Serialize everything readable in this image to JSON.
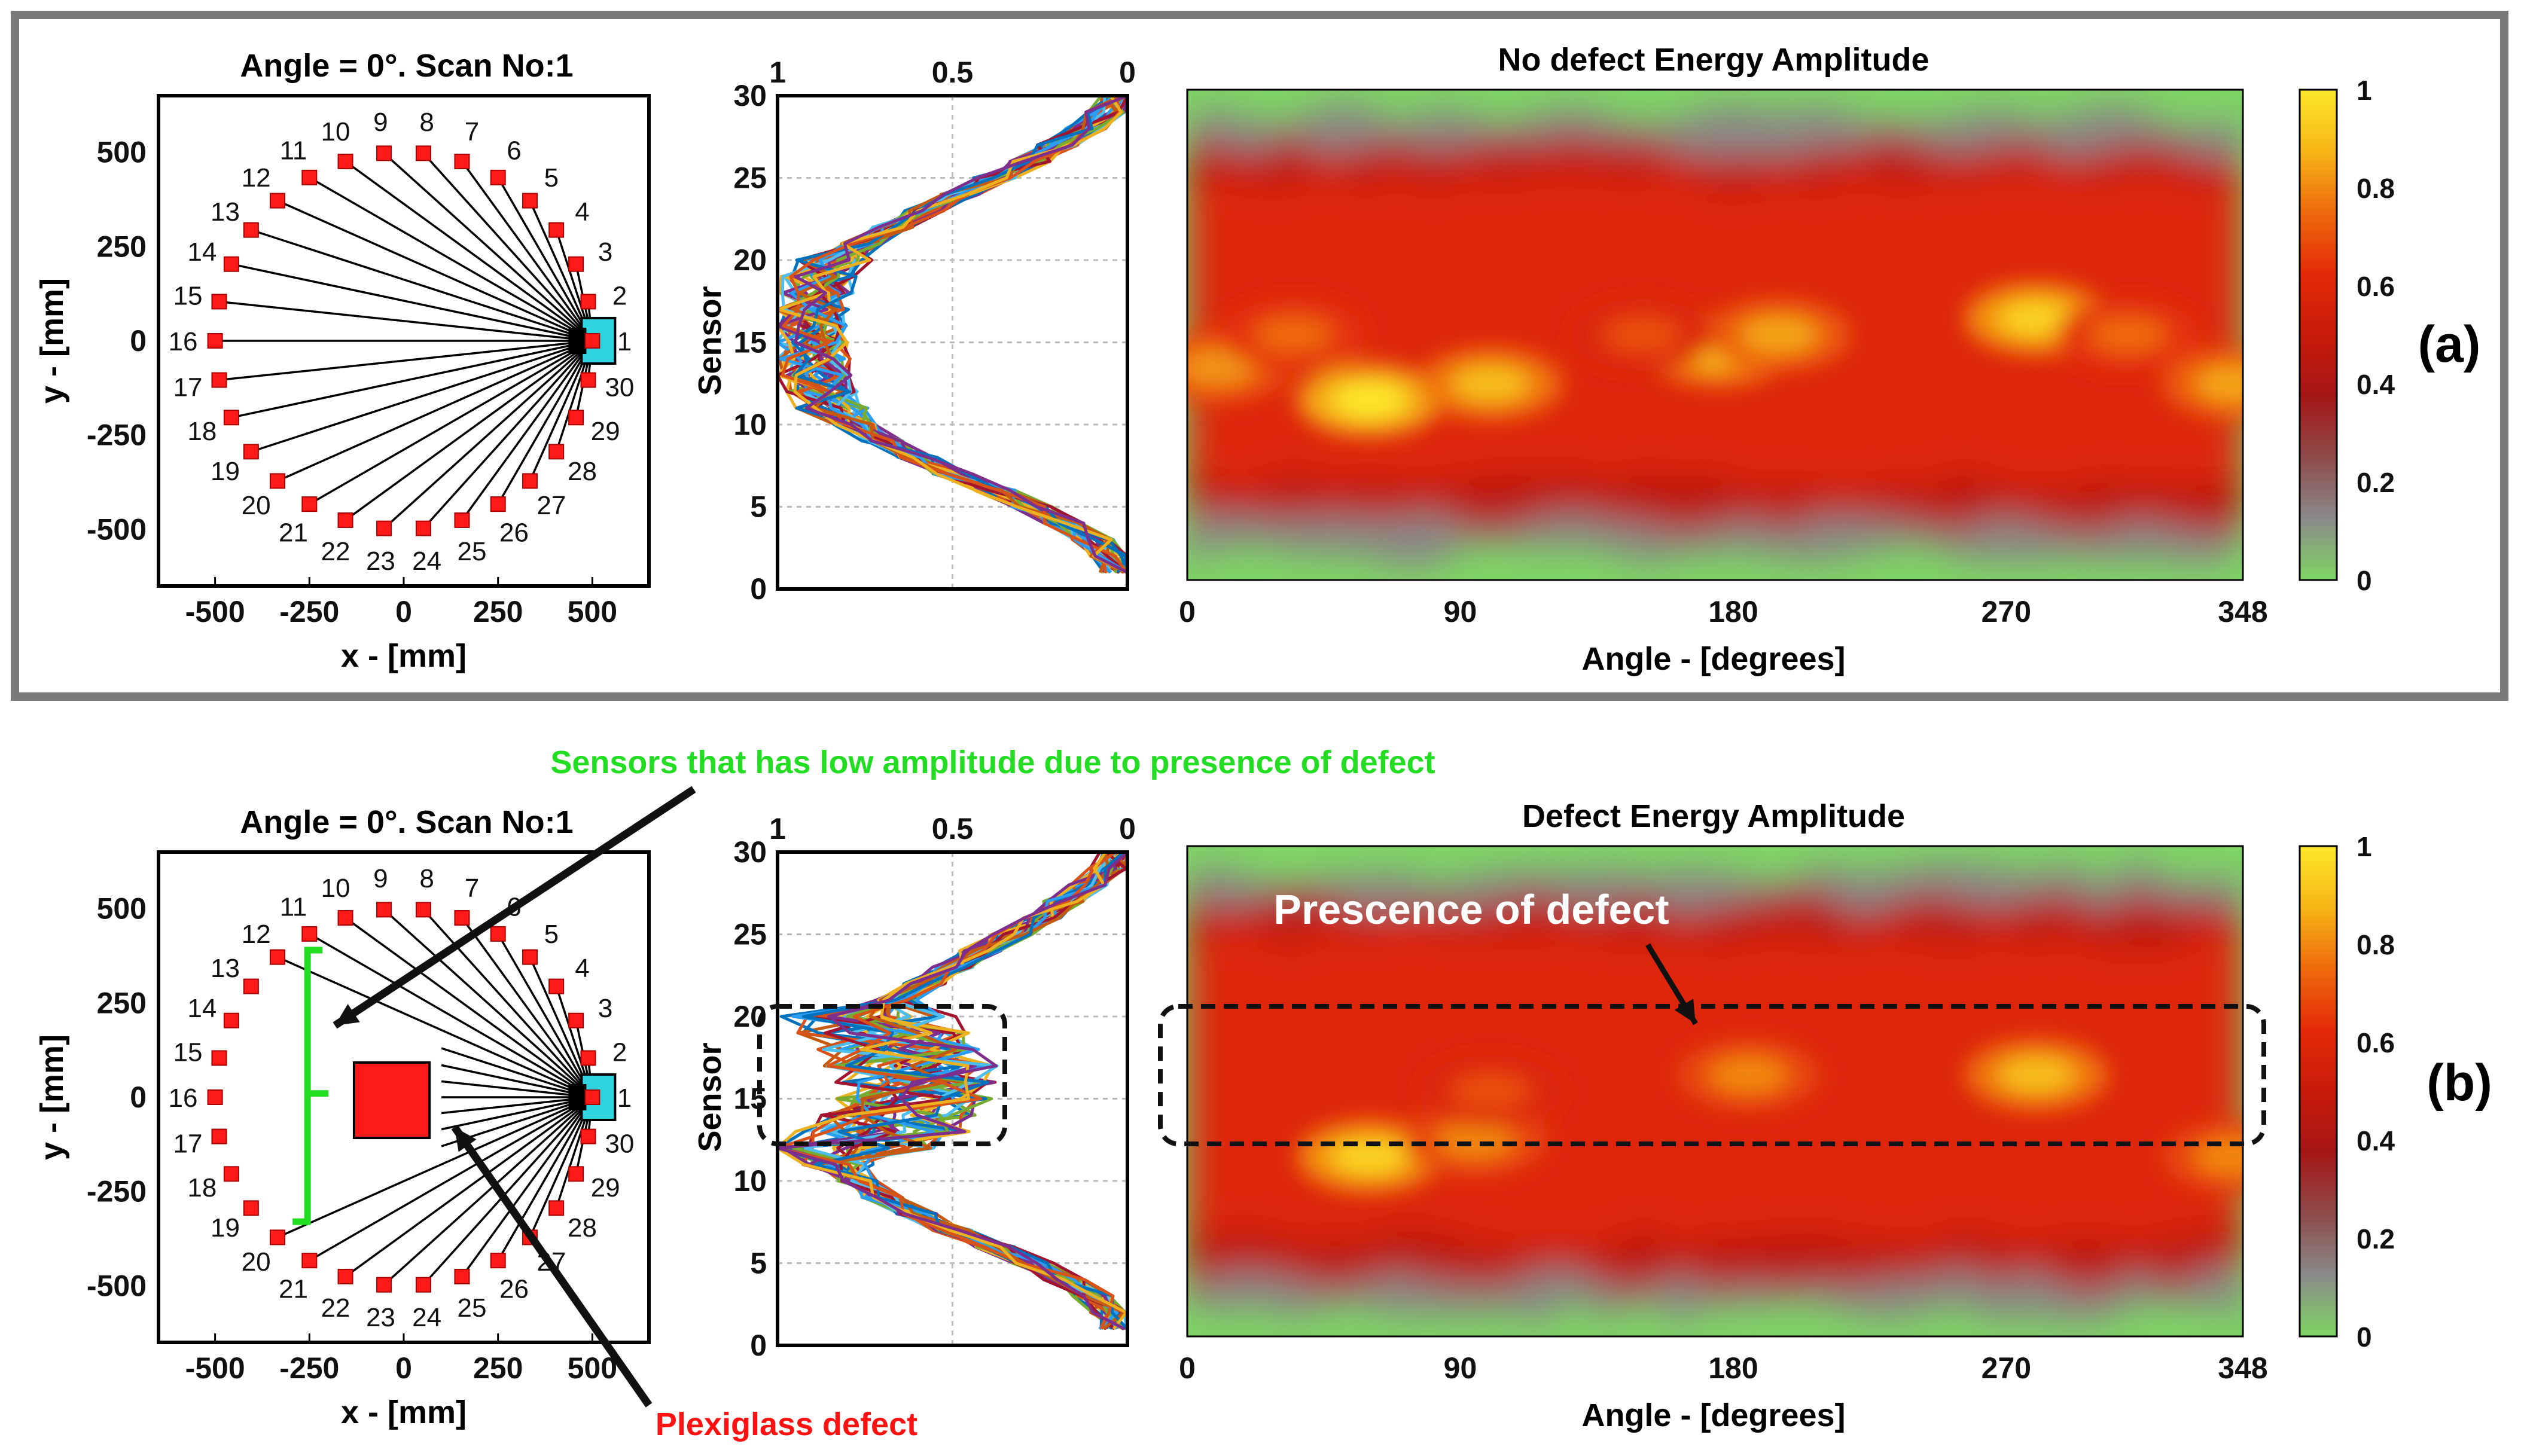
{
  "colors": {
    "panel_border": "#7a7a7a",
    "node": "#ff1a1a",
    "source": "#2fd4e0",
    "green_note": "#22dd22",
    "red_note": "#ff1111",
    "cmap": [
      "#7ed663",
      "#8a8a8a",
      "#8f4a4a",
      "#a51616",
      "#c81a0a",
      "#e42a08",
      "#ee6a0c",
      "#f6b516",
      "#fde82a"
    ]
  },
  "chart_data": [
    {
      "type": "scatter",
      "panel": "a",
      "title": "Angle = 0°. Scan No:1",
      "xlabel": "x - [mm]",
      "ylabel": "y - [mm]",
      "xlim": [
        -650,
        650
      ],
      "ylim": [
        -650,
        650
      ],
      "xticks": [
        "-500",
        "-250",
        "0",
        "250",
        "500"
      ],
      "yticks": [
        "500",
        "250",
        "0",
        "-250",
        "-500"
      ],
      "radius_mm": 500,
      "sensor_count": 30,
      "sensor_labels": [
        "1",
        "2",
        "3",
        "4",
        "5",
        "6",
        "7",
        "8",
        "9",
        "10",
        "11",
        "12",
        "13",
        "14",
        "15",
        "16",
        "17",
        "18",
        "19",
        "20",
        "21",
        "22",
        "23",
        "24",
        "25",
        "26",
        "27",
        "28",
        "29",
        "30"
      ],
      "source_position_mm": [
        500,
        0
      ],
      "defect": null
    },
    {
      "type": "line",
      "panel": "a",
      "xlabel": "",
      "ylabel": "Sensor",
      "xlim": [
        1,
        0
      ],
      "ylim": [
        0,
        30
      ],
      "xticks": [
        "1",
        "0.5",
        "0"
      ],
      "yticks": [
        "30",
        "25",
        "20",
        "15",
        "10",
        "5",
        "0"
      ],
      "grid": true,
      "sensors": [
        1,
        2,
        3,
        4,
        5,
        6,
        7,
        8,
        9,
        10,
        11,
        12,
        13,
        14,
        15,
        16,
        17,
        18,
        19,
        20,
        21,
        22,
        23,
        24,
        25,
        26,
        27,
        28,
        29,
        30
      ],
      "profile_mean": [
        0.02,
        0.05,
        0.1,
        0.18,
        0.27,
        0.38,
        0.5,
        0.6,
        0.7,
        0.78,
        0.84,
        0.87,
        0.9,
        0.9,
        0.91,
        0.91,
        0.9,
        0.89,
        0.88,
        0.84,
        0.76,
        0.67,
        0.58,
        0.48,
        0.38,
        0.28,
        0.2,
        0.12,
        0.06,
        0.02
      ],
      "spread_defect_window": null
    },
    {
      "type": "heatmap",
      "panel": "a",
      "title": "No defect Energy Amplitude",
      "xlabel": "Angle - [degrees]",
      "ylabel": "",
      "xlim": [
        0,
        348
      ],
      "ylim": [
        30,
        0
      ],
      "xticks": [
        "0",
        "90",
        "180",
        "270",
        "348"
      ],
      "colorbar": {
        "range": [
          0,
          1
        ],
        "ticks": [
          "1",
          "0.8",
          "0.6",
          "0.4",
          "0.2",
          "0"
        ]
      },
      "hotspots_deg_sensor_value": [
        [
          60,
          19,
          1.0
        ],
        [
          100,
          18,
          0.9
        ],
        [
          175,
          16,
          0.9
        ],
        [
          195,
          15,
          0.85
        ],
        [
          280,
          14,
          0.95
        ],
        [
          345,
          18,
          0.85
        ],
        [
          10,
          17,
          0.82
        ],
        [
          35,
          15,
          0.75
        ],
        [
          150,
          15,
          0.7
        ],
        [
          310,
          15,
          0.75
        ]
      ]
    },
    {
      "type": "scatter",
      "panel": "b",
      "title": "Angle = 0°. Scan No:1",
      "xlabel": "x - [mm]",
      "ylabel": "y - [mm]",
      "xlim": [
        -650,
        650
      ],
      "ylim": [
        -650,
        650
      ],
      "xticks": [
        "-500",
        "-250",
        "0",
        "250",
        "500"
      ],
      "yticks": [
        "500",
        "250",
        "0",
        "-250",
        "-500"
      ],
      "radius_mm": 500,
      "sensor_count": 30,
      "sensor_labels": [
        "1",
        "2",
        "3",
        "4",
        "5",
        "6",
        "7",
        "8",
        "9",
        "10",
        "11",
        "12",
        "13",
        "14",
        "15",
        "16",
        "17",
        "18",
        "19",
        "20",
        "21",
        "22",
        "23",
        "24",
        "25",
        "26",
        "27",
        "28",
        "29",
        "30"
      ],
      "source_position_mm": [
        500,
        0
      ],
      "defect": {
        "center_mm": [
          0,
          0
        ],
        "size_mm": 200
      },
      "affected_sensor_range": [
        12,
        20
      ]
    },
    {
      "type": "line",
      "panel": "b",
      "xlabel": "",
      "ylabel": "Sensor",
      "xlim": [
        1,
        0
      ],
      "ylim": [
        0,
        30
      ],
      "xticks": [
        "1",
        "0.5",
        "0"
      ],
      "yticks": [
        "30",
        "25",
        "20",
        "15",
        "10",
        "5",
        "0"
      ],
      "grid": true,
      "sensors": [
        1,
        2,
        3,
        4,
        5,
        6,
        7,
        8,
        9,
        10,
        11,
        12,
        13,
        14,
        15,
        16,
        17,
        18,
        19,
        20,
        21,
        22,
        23,
        24,
        25,
        26,
        27,
        28,
        29,
        30
      ],
      "profile_mean": [
        0.02,
        0.05,
        0.1,
        0.18,
        0.27,
        0.38,
        0.5,
        0.6,
        0.7,
        0.77,
        0.82,
        0.8,
        0.7,
        0.65,
        0.62,
        0.6,
        0.62,
        0.65,
        0.7,
        0.74,
        0.66,
        0.58,
        0.5,
        0.42,
        0.33,
        0.25,
        0.18,
        0.11,
        0.05,
        0.02
      ],
      "spread_defect_window": [
        12,
        20
      ]
    },
    {
      "type": "heatmap",
      "panel": "b",
      "title": "Defect Energy Amplitude",
      "xlabel": "Angle - [degrees]",
      "ylabel": "",
      "xlim": [
        0,
        348
      ],
      "ylim": [
        30,
        0
      ],
      "xticks": [
        "0",
        "90",
        "180",
        "270",
        "348"
      ],
      "colorbar": {
        "range": [
          0,
          1
        ],
        "ticks": [
          "1",
          "0.8",
          "0.6",
          "0.4",
          "0.2",
          "0"
        ]
      },
      "hotspots_deg_sensor_value": [
        [
          60,
          19,
          0.95
        ],
        [
          95,
          18,
          0.8
        ],
        [
          185,
          14,
          0.8
        ],
        [
          280,
          14,
          0.9
        ],
        [
          345,
          19,
          0.8
        ],
        [
          100,
          15,
          0.7
        ]
      ]
    }
  ],
  "panel_labels": {
    "a": "(a)",
    "b": "(b)"
  },
  "annotations": {
    "sensors_note": "Sensors that has low amplitude  due to presence of defect",
    "presence_note": "Prescence of defect",
    "defect_note": "Plexiglass defect"
  }
}
